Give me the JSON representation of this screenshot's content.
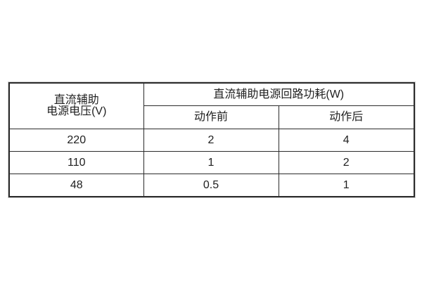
{
  "table": {
    "header": {
      "voltage_line1": "直流辅助",
      "voltage_line2": "电源电压(V)",
      "power_group": "直流辅助电源回路功耗(W)",
      "sub_before": "动作前",
      "sub_after": "动作后"
    },
    "rows": [
      {
        "voltage": "220",
        "before": "2",
        "after": "4"
      },
      {
        "voltage": "110",
        "before": "1",
        "after": "2"
      },
      {
        "voltage": "48",
        "before": "0.5",
        "after": "1"
      }
    ],
    "colors": {
      "border": "#2b2b2b",
      "text": "#1f1f1f",
      "background": "#ffffff",
      "outer_halo": "#cfcfcf"
    }
  }
}
